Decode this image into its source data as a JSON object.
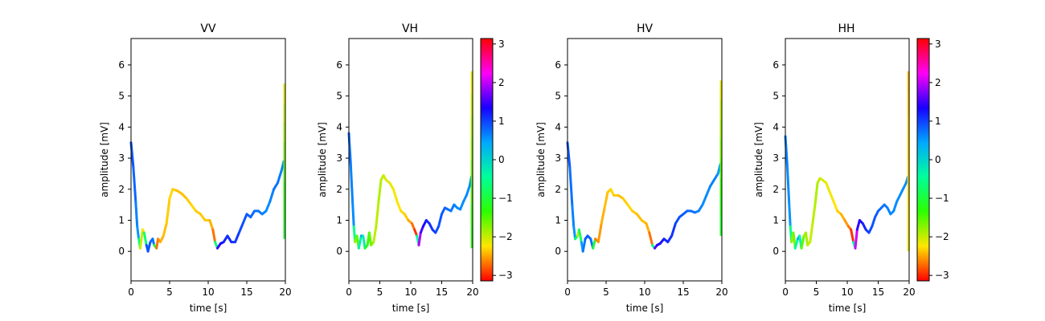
{
  "chart_data": [
    {
      "type": "line",
      "title": "VV",
      "xlabel": "time [s]",
      "ylabel": "amplitude [mV]",
      "xlim": [
        0,
        20
      ],
      "ylim": [
        -0.95,
        6.85
      ],
      "x_ticks": [
        0,
        5,
        10,
        15,
        20
      ],
      "y_ticks": [
        0,
        1,
        2,
        3,
        4,
        5,
        6
      ],
      "grid": false,
      "colorbar": false,
      "series": [
        {
          "x": [
            0,
            0.3,
            0.6,
            0.8,
            1.0,
            1.2,
            1.5,
            1.7,
            2.0,
            2.2,
            2.5,
            2.8,
            3.0,
            3.3,
            3.5,
            3.8,
            4.2,
            4.6,
            5.0,
            5.4,
            6.0,
            6.6,
            7.2,
            7.8,
            8.4,
            9.0,
            9.6,
            10.2,
            10.6,
            10.9,
            11.2,
            11.6,
            12.0,
            12.5,
            13.0,
            13.5,
            14.0,
            14.5,
            15.0,
            15.5,
            16.0,
            16.5,
            17.0,
            17.5,
            18.0,
            18.5,
            19.0,
            19.5,
            19.8
          ],
          "y": [
            3.5,
            2.7,
            1.6,
            0.8,
            0.4,
            0.1,
            0.7,
            0.6,
            0.2,
            0.0,
            0.3,
            0.4,
            0.2,
            0.1,
            0.4,
            0.3,
            0.5,
            0.9,
            1.7,
            2.0,
            1.95,
            1.85,
            1.7,
            1.5,
            1.3,
            1.2,
            1.0,
            1.0,
            0.7,
            0.3,
            0.1,
            0.25,
            0.3,
            0.5,
            0.3,
            0.3,
            0.6,
            0.9,
            1.2,
            1.1,
            1.3,
            1.3,
            1.2,
            1.3,
            1.6,
            2.0,
            2.2,
            2.6,
            2.9
          ],
          "phase": [
            0.9,
            0.9,
            0.7,
            0.6,
            0.5,
            -1.7,
            -2.3,
            -2.2,
            0.8,
            1.0,
            0.8,
            0.8,
            0.7,
            -2.7,
            -2.7,
            -2.5,
            -2.4,
            -2.4,
            -2.3,
            -2.3,
            -2.4,
            -2.4,
            -2.4,
            -2.3,
            -2.3,
            -2.4,
            -2.3,
            -2.4,
            -2.5,
            -2.9,
            1.6,
            1.4,
            1.2,
            1.1,
            1.1,
            1.1,
            1.0,
            0.9,
            0.9,
            0.8,
            0.8,
            0.7,
            0.7,
            0.6,
            0.6,
            0.7,
            0.8,
            0.6,
            0.7
          ]
        },
        {
          "x": [
            19.9,
            19.9
          ],
          "y": [
            0.4,
            5.4
          ],
          "phase_range": [
            -1.0,
            -2.2
          ]
        }
      ]
    },
    {
      "type": "line",
      "title": "VH",
      "xlabel": "time [s]",
      "ylabel": "amplitude [mV]",
      "xlim": [
        0,
        20
      ],
      "ylim": [
        -0.95,
        6.85
      ],
      "x_ticks": [
        0,
        5,
        10,
        15,
        20
      ],
      "y_ticks": [
        0,
        1,
        2,
        3,
        4,
        5,
        6
      ],
      "grid": false,
      "colorbar": true,
      "series": [
        {
          "x": [
            0,
            0.3,
            0.6,
            0.8,
            1.0,
            1.3,
            1.6,
            2.0,
            2.3,
            2.6,
            3.0,
            3.3,
            3.6,
            4.0,
            4.4,
            4.8,
            5.2,
            5.6,
            6.0,
            6.6,
            7.2,
            7.8,
            8.4,
            9.0,
            9.6,
            10.2,
            10.6,
            11.0,
            11.3,
            11.6,
            12.0,
            12.5,
            13.0,
            13.5,
            14.0,
            14.5,
            15.0,
            15.5,
            16.0,
            16.5,
            17.0,
            17.5,
            18.0,
            18.5,
            19.0,
            19.5,
            19.8
          ],
          "y": [
            3.8,
            2.8,
            1.6,
            0.8,
            0.3,
            0.5,
            0.1,
            0.5,
            0.5,
            0.1,
            0.2,
            0.6,
            0.2,
            0.3,
            0.8,
            1.6,
            2.3,
            2.45,
            2.3,
            2.2,
            2.0,
            1.6,
            1.3,
            1.2,
            1.0,
            0.9,
            0.7,
            0.5,
            0.2,
            0.6,
            0.8,
            1.0,
            0.9,
            0.7,
            0.6,
            0.8,
            1.2,
            1.4,
            1.35,
            1.3,
            1.5,
            1.4,
            1.35,
            1.6,
            1.8,
            2.1,
            2.4
          ],
          "phase": [
            0.8,
            0.7,
            0.6,
            0.6,
            -1.7,
            -1.9,
            -1.2,
            0.6,
            0.4,
            -1.0,
            -1.2,
            -1.6,
            -1.5,
            -1.9,
            -2.0,
            -1.9,
            -1.9,
            -2.0,
            -2.1,
            -2.1,
            -2.2,
            -2.2,
            -2.3,
            -2.3,
            -2.4,
            -2.6,
            -2.8,
            -3.1,
            2.3,
            1.6,
            1.4,
            1.2,
            1.1,
            1.1,
            1.0,
            0.9,
            0.9,
            0.8,
            0.8,
            0.7,
            0.7,
            0.6,
            0.6,
            0.6,
            0.6,
            0.6,
            0.6
          ]
        },
        {
          "x": [
            19.9,
            19.9
          ],
          "y": [
            0.1,
            5.8
          ],
          "phase_range": [
            -1.2,
            -2.2
          ]
        }
      ]
    },
    {
      "type": "line",
      "title": "HV",
      "xlabel": "time [s]",
      "ylabel": "amplitude [mV]",
      "xlim": [
        0,
        20
      ],
      "ylim": [
        -0.95,
        6.85
      ],
      "x_ticks": [
        0,
        5,
        10,
        15,
        20
      ],
      "y_ticks": [
        0,
        1,
        2,
        3,
        4,
        5,
        6
      ],
      "grid": false,
      "colorbar": false,
      "series": [
        {
          "x": [
            0,
            0.3,
            0.6,
            0.8,
            1.0,
            1.3,
            1.5,
            1.8,
            2.0,
            2.3,
            2.6,
            3.0,
            3.3,
            3.6,
            4.0,
            4.4,
            4.8,
            5.2,
            5.6,
            6.0,
            6.6,
            7.2,
            7.8,
            8.4,
            9.0,
            9.6,
            10.2,
            10.6,
            11.0,
            11.3,
            11.6,
            12.0,
            12.5,
            13.0,
            13.5,
            14.0,
            14.5,
            15.0,
            15.5,
            16.0,
            16.5,
            17.0,
            17.5,
            18.0,
            18.5,
            19.0,
            19.5,
            19.8
          ],
          "y": [
            3.5,
            2.7,
            1.5,
            0.8,
            0.4,
            0.5,
            0.7,
            0.3,
            0.0,
            0.4,
            0.5,
            0.4,
            0.1,
            0.4,
            0.3,
            0.9,
            1.4,
            1.9,
            2.0,
            1.8,
            1.8,
            1.7,
            1.5,
            1.3,
            1.2,
            1.0,
            0.9,
            0.6,
            0.2,
            0.1,
            0.2,
            0.25,
            0.4,
            0.3,
            0.5,
            0.9,
            1.1,
            1.2,
            1.3,
            1.3,
            1.25,
            1.3,
            1.5,
            1.8,
            2.1,
            2.3,
            2.5,
            2.8
          ],
          "phase": [
            0.9,
            0.8,
            0.7,
            0.6,
            0.5,
            -1.9,
            -2.0,
            0.4,
            0.6,
            0.8,
            0.9,
            0.8,
            0.7,
            -2.7,
            -2.6,
            -2.5,
            -2.4,
            -2.4,
            -2.3,
            -2.3,
            -2.4,
            -2.4,
            -2.3,
            -2.3,
            -2.4,
            -2.4,
            -2.4,
            -2.5,
            -2.9,
            1.7,
            1.5,
            1.3,
            1.2,
            1.1,
            1.1,
            1.0,
            0.9,
            0.9,
            0.8,
            0.8,
            0.7,
            0.7,
            0.6,
            0.6,
            0.6,
            0.7,
            0.6,
            0.4
          ]
        },
        {
          "x": [
            19.9,
            19.9
          ],
          "y": [
            0.5,
            5.5
          ],
          "phase_range": [
            -1.0,
            -2.2
          ]
        }
      ]
    },
    {
      "type": "line",
      "title": "HH",
      "xlabel": "time [s]",
      "ylabel": "amplitude [mV]",
      "xlim": [
        0,
        20
      ],
      "ylim": [
        -0.95,
        6.85
      ],
      "x_ticks": [
        0,
        5,
        10,
        15,
        20
      ],
      "y_ticks": [
        0,
        1,
        2,
        3,
        4,
        5,
        6
      ],
      "grid": false,
      "colorbar": true,
      "series": [
        {
          "x": [
            0,
            0.3,
            0.6,
            0.8,
            1.0,
            1.3,
            1.6,
            2.0,
            2.3,
            2.6,
            3.0,
            3.3,
            3.6,
            4.0,
            4.4,
            4.8,
            5.2,
            5.6,
            6.0,
            6.6,
            7.2,
            7.8,
            8.4,
            9.0,
            9.6,
            10.2,
            10.6,
            11.0,
            11.3,
            11.6,
            12.0,
            12.5,
            13.0,
            13.5,
            14.0,
            14.5,
            15.0,
            15.5,
            16.0,
            16.5,
            17.0,
            17.5,
            18.0,
            18.5,
            19.0,
            19.5,
            19.8
          ],
          "y": [
            3.7,
            2.8,
            1.6,
            0.8,
            0.3,
            0.6,
            0.1,
            0.4,
            0.5,
            0.1,
            0.5,
            0.6,
            0.2,
            0.3,
            0.9,
            1.5,
            2.2,
            2.35,
            2.3,
            2.2,
            1.9,
            1.6,
            1.3,
            1.2,
            1.0,
            0.8,
            0.7,
            0.3,
            0.1,
            0.7,
            1.0,
            0.9,
            0.7,
            0.6,
            0.8,
            1.1,
            1.3,
            1.4,
            1.5,
            1.4,
            1.2,
            1.3,
            1.6,
            1.8,
            2.0,
            2.2,
            2.4
          ],
          "phase": [
            0.7,
            0.6,
            0.6,
            0.5,
            -1.6,
            -2.0,
            -1.3,
            0.5,
            0.4,
            -1.1,
            -2.0,
            -1.7,
            -2.0,
            -2.0,
            -2.0,
            -1.9,
            -1.9,
            -2.0,
            -2.1,
            -2.1,
            -2.2,
            -2.2,
            -2.3,
            -2.4,
            -2.5,
            -2.6,
            -2.8,
            -3.1,
            2.6,
            1.5,
            1.4,
            1.2,
            1.1,
            1.0,
            0.9,
            0.9,
            0.8,
            0.8,
            0.7,
            0.7,
            0.6,
            0.6,
            0.6,
            0.6,
            0.6,
            0.6,
            0.6
          ]
        },
        {
          "x": [
            19.9,
            19.9
          ],
          "y": [
            0.0,
            5.8
          ],
          "phase_range": [
            -2.2,
            -2.4
          ]
        }
      ]
    }
  ],
  "colorbar": {
    "ticks": [
      3,
      2,
      1,
      0,
      -1,
      -2,
      -3
    ],
    "tick_labels": [
      "3",
      "2",
      "1",
      "0",
      "−1",
      "−2",
      "−3"
    ],
    "range": [
      -3.1416,
      3.1416
    ],
    "colormap": "hsv",
    "stops": [
      "#ff0000",
      "#ffe600",
      "#2cff00",
      "#00ff9a",
      "#00a8ff",
      "#1800ff",
      "#ff00f6",
      "#ff0000"
    ]
  }
}
